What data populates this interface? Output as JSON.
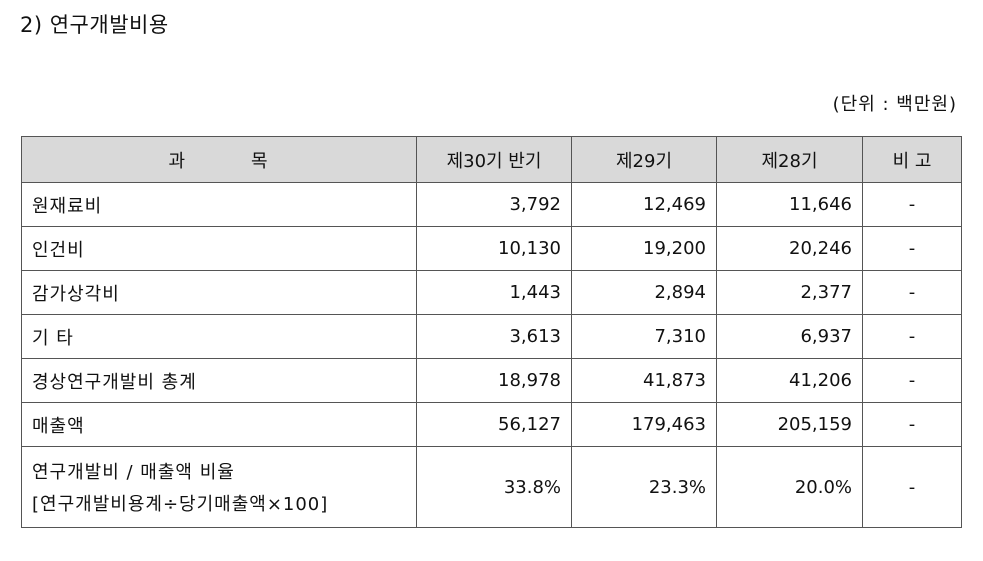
{
  "section_title": "2) 연구개발비용",
  "unit_note": "(단위 : 백만원)",
  "table": {
    "headers": {
      "item_left": "과",
      "item_right": "목",
      "col_30": "제30기 반기",
      "col_29": "제29기",
      "col_28": "제28기",
      "note": "비 고"
    },
    "rows": [
      {
        "item": "원재료비",
        "p30": "3,792",
        "p29": "12,469",
        "p28": "11,646",
        "note": "-"
      },
      {
        "item": "인건비",
        "p30": "10,130",
        "p29": "19,200",
        "p28": "20,246",
        "note": "-"
      },
      {
        "item": "감가상각비",
        "p30": "1,443",
        "p29": "2,894",
        "p28": "2,377",
        "note": "-"
      },
      {
        "item": "기 타",
        "p30": "3,613",
        "p29": "7,310",
        "p28": "6,937",
        "note": "-"
      },
      {
        "item": "경상연구개발비 총계",
        "p30": "18,978",
        "p29": "41,873",
        "p28": "41,206",
        "note": "-"
      },
      {
        "item": "매출액",
        "p30": "56,127",
        "p29": "179,463",
        "p28": "205,159",
        "note": "-"
      }
    ],
    "ratio_row": {
      "item_line1": "연구개발비 / 매출액 비율",
      "item_line2": "[연구개발비용계÷당기매출액×100]",
      "p30": "33.8%",
      "p29": "23.3%",
      "p28": "20.0%",
      "note": "-"
    }
  }
}
